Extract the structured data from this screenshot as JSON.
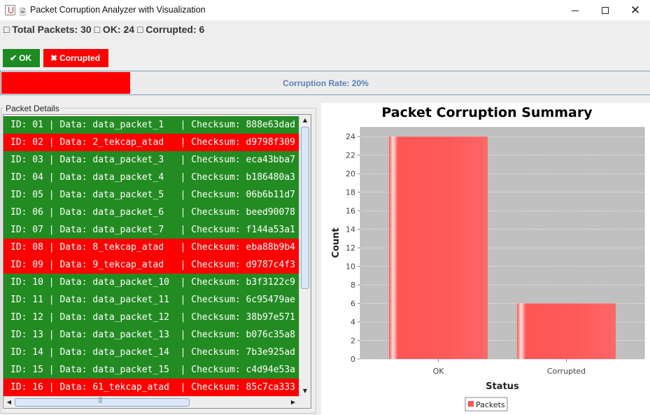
{
  "window": {
    "title": "Packet Corruption Analyzer with Visualization"
  },
  "stats": {
    "text": "□ Total Packets: 30 □ OK: 24 □ Corrupted: 6"
  },
  "buttons": {
    "ok_label": "OK",
    "corrupted_label": "Corrupted"
  },
  "progress": {
    "label": "Corruption Rate: 20%",
    "value_percent": 20
  },
  "packet_panel": {
    "legend": "Packet Details",
    "rows": [
      {
        "text": "ID: 01 | Data: data_packet_1   | Checksum: 888e63dad",
        "status": "ok"
      },
      {
        "text": "ID: 02 | Data: 2_tekcap_atad   | Checksum: d9798f309",
        "status": "corrupted"
      },
      {
        "text": "ID: 03 | Data: data_packet_3   | Checksum: eca43bba7",
        "status": "ok"
      },
      {
        "text": "ID: 04 | Data: data_packet_4   | Checksum: b186480a3",
        "status": "ok"
      },
      {
        "text": "ID: 05 | Data: data_packet_5   | Checksum: 06b6b11d7",
        "status": "ok"
      },
      {
        "text": "ID: 06 | Data: data_packet_6   | Checksum: beed90078",
        "status": "ok"
      },
      {
        "text": "ID: 07 | Data: data_packet_7   | Checksum: f144a53a1",
        "status": "ok"
      },
      {
        "text": "ID: 08 | Data: 8_tekcap_atad   | Checksum: eba88b9b4",
        "status": "corrupted"
      },
      {
        "text": "ID: 09 | Data: 9_tekcap_atad   | Checksum: d9787c4f3",
        "status": "corrupted"
      },
      {
        "text": "ID: 10 | Data: data_packet_10  | Checksum: b3f3122c9",
        "status": "ok"
      },
      {
        "text": "ID: 11 | Data: data_packet_11  | Checksum: 6c95479ae",
        "status": "ok"
      },
      {
        "text": "ID: 12 | Data: data_packet_12  | Checksum: 38b97e571",
        "status": "ok"
      },
      {
        "text": "ID: 13 | Data: data_packet_13  | Checksum: b076c35a8",
        "status": "ok"
      },
      {
        "text": "ID: 14 | Data: data_packet_14  | Checksum: 7b3e925ad",
        "status": "ok"
      },
      {
        "text": "ID: 15 | Data: data_packet_15  | Checksum: c4d94e53a",
        "status": "ok"
      },
      {
        "text": "ID: 16 | Data: 61_tekcap_atad  | Checksum: 85c7ca333",
        "status": "corrupted"
      }
    ]
  },
  "colors": {
    "ok": "#228b22",
    "corrupted": "#ff0000",
    "bar": "#ff5555",
    "plot_bg": "#c0c0c0",
    "progress_text": "#5b7fbc"
  },
  "chart_data": {
    "type": "bar",
    "title": "Packet Corruption Summary",
    "categories": [
      "OK",
      "Corrupted"
    ],
    "series": [
      {
        "name": "Packets",
        "values": [
          24,
          6
        ]
      }
    ],
    "xlabel": "Status",
    "ylabel": "Count",
    "ylim": [
      0,
      25
    ],
    "yticks": [
      0,
      2,
      4,
      6,
      8,
      10,
      12,
      14,
      16,
      18,
      20,
      22,
      24
    ],
    "grid": true,
    "legend_position": "bottom"
  }
}
